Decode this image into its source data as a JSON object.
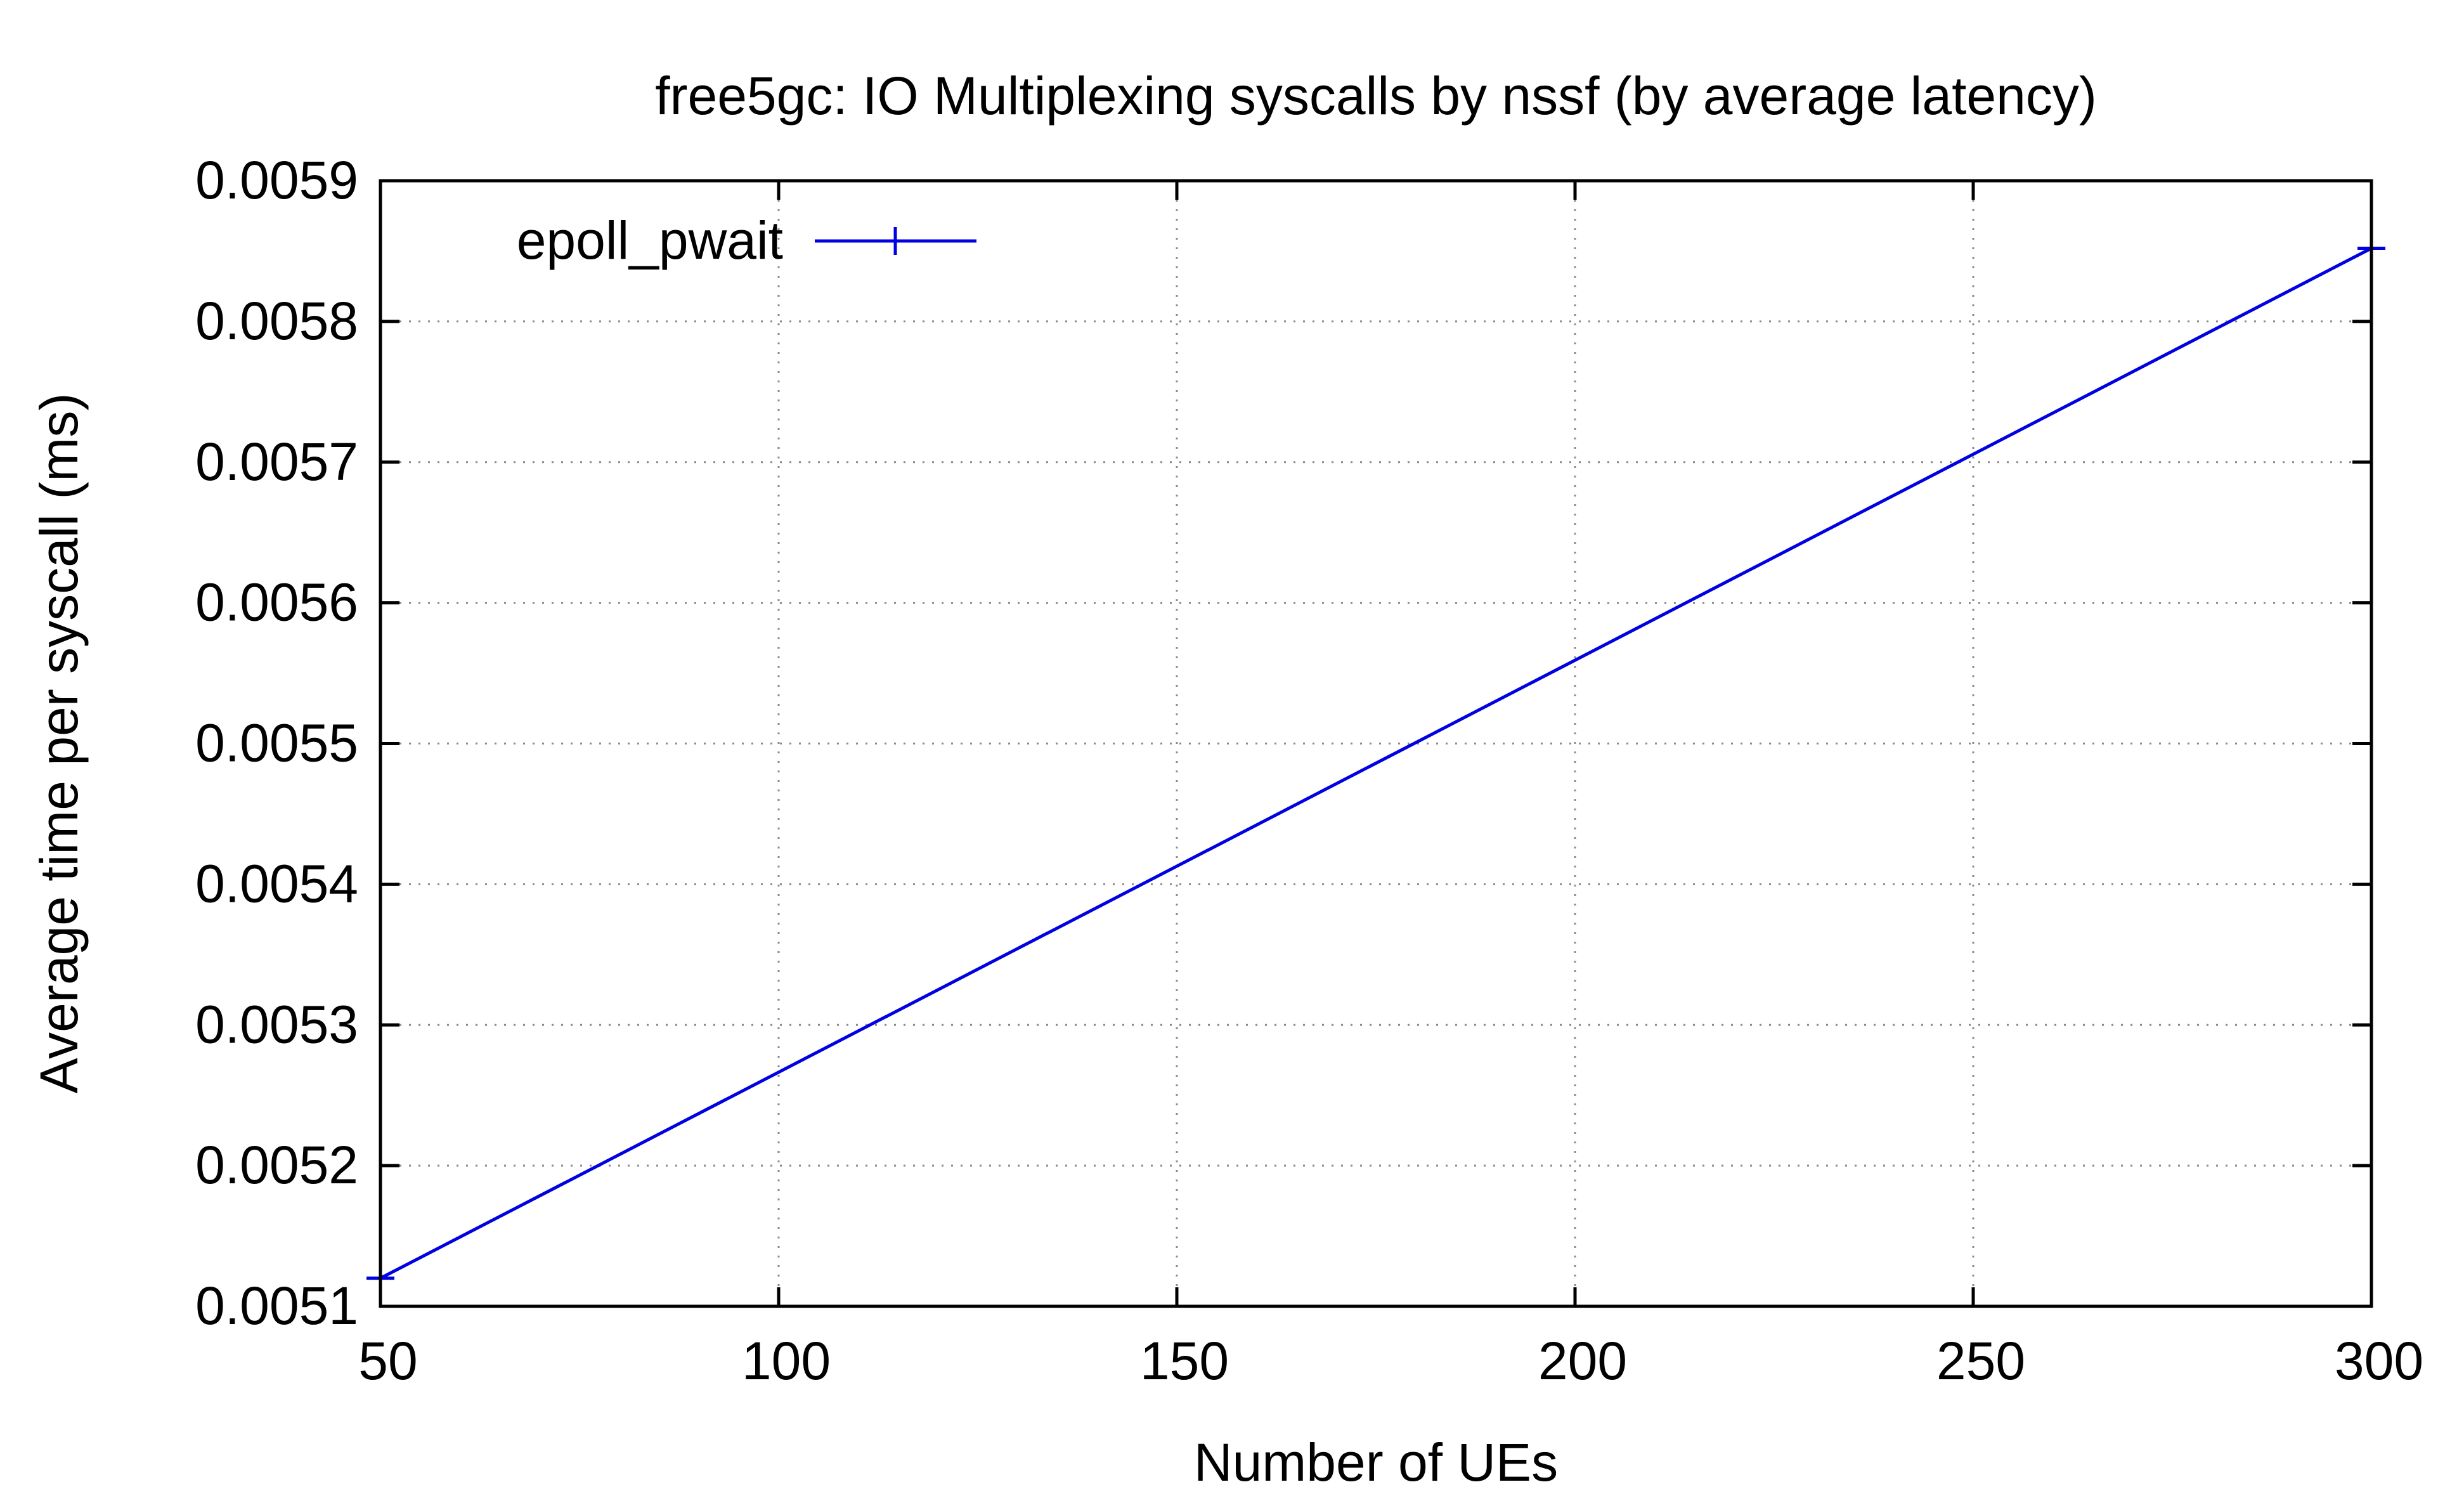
{
  "chart_data": {
    "type": "line",
    "title": "free5gc: IO Multiplexing syscalls by nssf (by average latency)",
    "xlabel": "Number of UEs",
    "ylabel": "Average time per syscall (ms)",
    "xlim": [
      50,
      300
    ],
    "ylim": [
      0.0051,
      0.0059
    ],
    "x_ticks": [
      "50",
      "100",
      "150",
      "200",
      "250",
      "300"
    ],
    "y_ticks": [
      "0.0051",
      "0.0052",
      "0.0053",
      "0.0054",
      "0.0055",
      "0.0056",
      "0.0057",
      "0.0058",
      "0.0059"
    ],
    "grid": true,
    "legend_position": "top-left",
    "series": [
      {
        "name": "epoll_pwait",
        "color": "#0000e0",
        "marker": "plus",
        "x": [
          50,
          300
        ],
        "y": [
          0.00512,
          0.005852
        ]
      }
    ]
  }
}
